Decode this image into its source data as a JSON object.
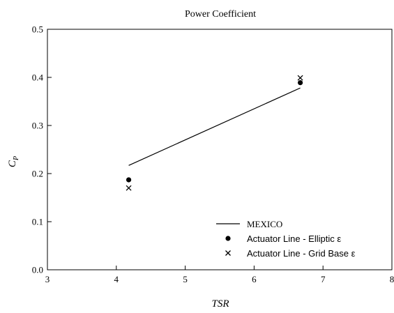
{
  "chart_data": {
    "type": "line",
    "title": "Power Coefficient",
    "xlabel": "TSR",
    "ylabel_main": "C",
    "ylabel_sub": "P",
    "xlim": [
      3,
      8
    ],
    "ylim": [
      0.0,
      0.5
    ],
    "x_ticks": [
      3,
      4,
      5,
      6,
      7,
      8
    ],
    "x_tick_labels": [
      "3",
      "4",
      "5",
      "6",
      "7",
      "8"
    ],
    "y_ticks": [
      0.0,
      0.1,
      0.2,
      0.3,
      0.4,
      0.5
    ],
    "y_tick_labels": [
      "0.0",
      "0.1",
      "0.2",
      "0.3",
      "0.4",
      "0.5"
    ],
    "grid": false,
    "legend_position": "bottom-right",
    "series": [
      {
        "name": "MEXICO",
        "marker": "line",
        "x": [
          4.18,
          6.67
        ],
        "y": [
          0.217,
          0.378
        ]
      },
      {
        "name": "Actuator Line - Elliptic ε",
        "marker": "circle",
        "x": [
          4.18,
          6.67
        ],
        "y": [
          0.187,
          0.389
        ]
      },
      {
        "name": "Actuator Line - Grid Base ε",
        "marker": "x",
        "x": [
          4.18,
          6.67
        ],
        "y": [
          0.17,
          0.399
        ]
      }
    ]
  }
}
